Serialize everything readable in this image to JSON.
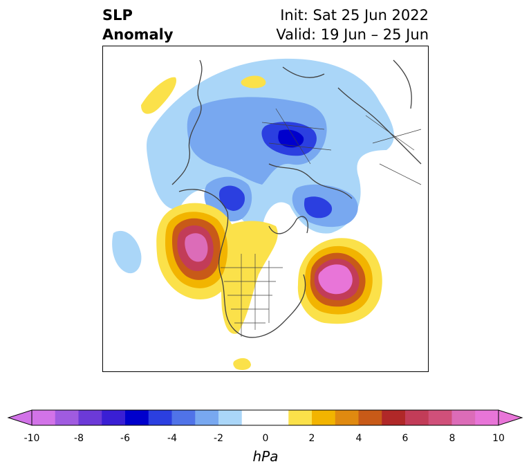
{
  "title": {
    "left": "SLP\nAnomaly",
    "right_line1": "Init: Sat 25 Jun 2022",
    "right_line2": "Valid: 19 Jun – 25 Jun"
  },
  "colorbar": {
    "units": "hPa",
    "ticks": [
      "-10",
      "-8",
      "-6",
      "-4",
      "-2",
      "0",
      "2",
      "4",
      "6",
      "8",
      "10"
    ],
    "colors": [
      "#d273e8",
      "#a05be0",
      "#6c3ad8",
      "#3a1fd4",
      "#0000cc",
      "#2b3fe0",
      "#5073e8",
      "#78a8f0",
      "#aad6f8",
      "#ffffff",
      "#ffffff",
      "#fbe14a",
      "#f2b400",
      "#e08a10",
      "#c85a18",
      "#b02828",
      "#c23c58",
      "#d0507a",
      "#dc6cb8",
      "#e875d8"
    ]
  }
}
